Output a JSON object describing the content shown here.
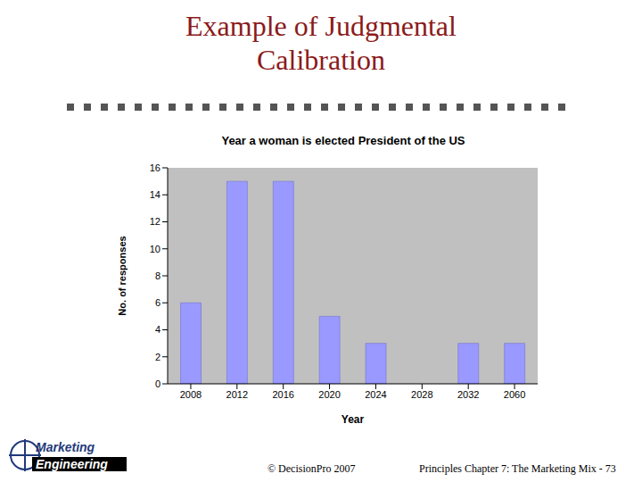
{
  "slide": {
    "title": "Example of Judgmental Calibration",
    "logo": [
      "Marketing",
      "Engineering"
    ],
    "footer_left": "© DecisionPro 2007",
    "footer_right": "Principles Chapter 7: The Marketing Mix - 73"
  },
  "chart_data": {
    "type": "bar",
    "title": "Year a woman is elected President of the US",
    "x_label": "Year",
    "y_label": "No. of responses",
    "categories": [
      "2008",
      "2012",
      "2016",
      "2020",
      "2024",
      "2028",
      "2032",
      "2060"
    ],
    "values": [
      6,
      15,
      15,
      5,
      3,
      0,
      3,
      3
    ],
    "color": "#9999ff",
    "ylim": [
      0,
      16
    ],
    "yticks": [
      0,
      2,
      4,
      6,
      8,
      10,
      12,
      14,
      16
    ],
    "grid": false
  }
}
